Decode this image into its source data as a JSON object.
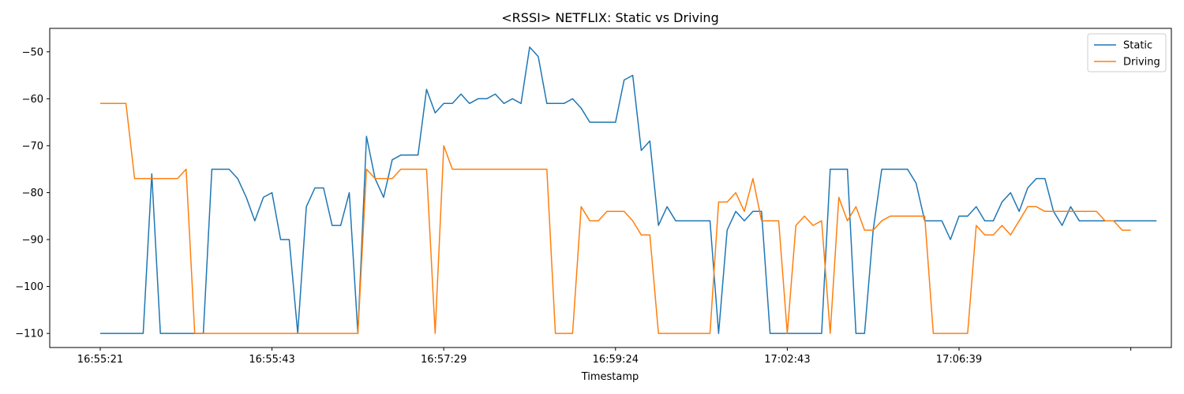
{
  "chart_data": {
    "type": "line",
    "title": "<RSSI> NETFLIX: Static vs Driving",
    "xlabel": "Timestamp",
    "ylabel": "",
    "x_tick_labels": [
      "16:55:21",
      "16:55:43",
      "16:57:29",
      "16:59:24",
      "17:02:43",
      "17:06:39",
      ""
    ],
    "x_tick_index": [
      0,
      20,
      40,
      60,
      80,
      100,
      120
    ],
    "ylim": [
      -113,
      -45
    ],
    "yticks": [
      -110,
      -100,
      -90,
      -80,
      -70,
      -60,
      -50
    ],
    "grid": false,
    "legend_position": "top-right",
    "series": [
      {
        "name": "Static",
        "color": "#1f77b4",
        "values": [
          -110,
          -110,
          -110,
          -110,
          -110,
          -110,
          -76,
          -110,
          -110,
          -110,
          -110,
          -110,
          -110,
          -75,
          -75,
          -75,
          -77,
          -81,
          -86,
          -81,
          -80,
          -90,
          -90,
          -110,
          -83,
          -79,
          -79,
          -87,
          -87,
          -80,
          -110,
          -68,
          -77,
          -81,
          -73,
          -72,
          -72,
          -72,
          -58,
          -63,
          -61,
          -61,
          -59,
          -61,
          -60,
          -60,
          -59,
          -61,
          -60,
          -61,
          -49,
          -51,
          -61,
          -61,
          -61,
          -60,
          -62,
          -65,
          -65,
          -65,
          -65,
          -56,
          -55,
          -71,
          -69,
          -87,
          -83,
          -86,
          -86,
          -86,
          -86,
          -86,
          -110,
          -88,
          -84,
          -86,
          -84,
          -84,
          -110,
          -110,
          -110,
          -110,
          -110,
          -110,
          -110,
          -75,
          -75,
          -75,
          -110,
          -110,
          -88,
          -75,
          -75,
          -75,
          -75,
          -78,
          -86,
          -86,
          -86,
          -90,
          -85,
          -85,
          -83,
          -86,
          -86,
          -82,
          -80,
          -84,
          -79,
          -77,
          -77,
          -84,
          -87,
          -83,
          -86,
          -86,
          -86,
          -86,
          -86,
          -86,
          -86,
          -86,
          -86,
          -86
        ]
      },
      {
        "name": "Driving",
        "color": "#ff7f0e",
        "values": [
          -61,
          -61,
          -61,
          -61,
          -77,
          -77,
          -77,
          -77,
          -77,
          -77,
          -75,
          -110,
          -110,
          -110,
          -110,
          -110,
          -110,
          -110,
          -110,
          -110,
          -110,
          -110,
          -110,
          -110,
          -110,
          -110,
          -110,
          -110,
          -110,
          -110,
          -110,
          -75,
          -77,
          -77,
          -77,
          -75,
          -75,
          -75,
          -75,
          -110,
          -70,
          -75,
          -75,
          -75,
          -75,
          -75,
          -75,
          -75,
          -75,
          -75,
          -75,
          -75,
          -75,
          -110,
          -110,
          -110,
          -83,
          -86,
          -86,
          -84,
          -84,
          -84,
          -86,
          -89,
          -89,
          -110,
          -110,
          -110,
          -110,
          -110,
          -110,
          -110,
          -82,
          -82,
          -80,
          -84,
          -77,
          -86,
          -86,
          -86,
          -110,
          -87,
          -85,
          -87,
          -86,
          -110,
          -81,
          -86,
          -83,
          -88,
          -88,
          -86,
          -85,
          -85,
          -85,
          -85,
          -85,
          -110,
          -110,
          -110,
          -110,
          -110,
          -87,
          -89,
          -89,
          -87,
          -89,
          -86,
          -83,
          -83,
          -84,
          -84,
          -84,
          -84,
          -84,
          -84,
          -84,
          -86,
          -86,
          -88,
          -88
        ]
      }
    ]
  }
}
